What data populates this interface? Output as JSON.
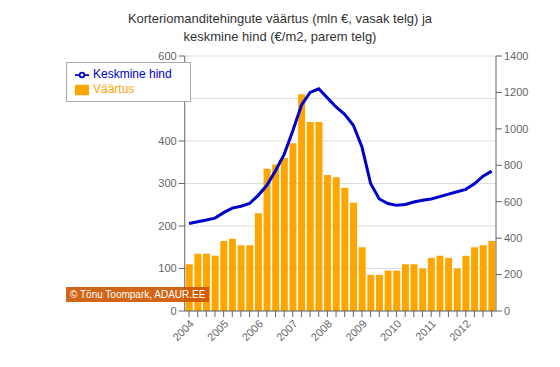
{
  "chart_data": {
    "type": "bar",
    "title": "Korteriomanditehingute väärtus (mln €, vasak telg) ja\nkeskmine hind (€/m2, parem telg)",
    "annotations": [
      "© Tõnu Toompark, ADAUR.EE"
    ],
    "categories": [
      "2004",
      null,
      null,
      null,
      "2005",
      null,
      null,
      null,
      "2006",
      null,
      null,
      null,
      "2007",
      null,
      null,
      null,
      "2008",
      null,
      null,
      null,
      "2009",
      null,
      null,
      null,
      "2010",
      null,
      null,
      null,
      "2011",
      null,
      null,
      null,
      "2012",
      null,
      null,
      null
    ],
    "series": [
      {
        "name": "Väärtus",
        "type": "bar",
        "color": "#FFA500",
        "values": [
          110,
          135,
          135,
          130,
          165,
          170,
          155,
          155,
          230,
          335,
          345,
          360,
          395,
          510,
          445,
          445,
          320,
          315,
          290,
          255,
          150,
          85,
          85,
          95,
          95,
          110,
          110,
          100,
          125,
          130,
          125,
          100,
          130,
          150,
          155,
          165
        ]
      },
      {
        "name": "Keskmine hind",
        "type": "line",
        "color": "#0000CC",
        "axis": "y2",
        "values": [
          480,
          490,
          500,
          510,
          540,
          565,
          575,
          590,
          635,
          690,
          770,
          860,
          990,
          1130,
          1200,
          1220,
          1170,
          1120,
          1080,
          1020,
          900,
          700,
          615,
          590,
          580,
          585,
          598,
          608,
          615,
          628,
          642,
          655,
          668,
          698,
          740,
          768
        ]
      }
    ],
    "ylim": [
      0,
      600
    ],
    "yticks": [
      0,
      100,
      200,
      300,
      400,
      500,
      600
    ],
    "y2lim": [
      0,
      1400
    ],
    "y2ticks": [
      0,
      200,
      400,
      600,
      800,
      1000,
      1200,
      1400
    ],
    "grid": true,
    "legend": "upper left"
  }
}
